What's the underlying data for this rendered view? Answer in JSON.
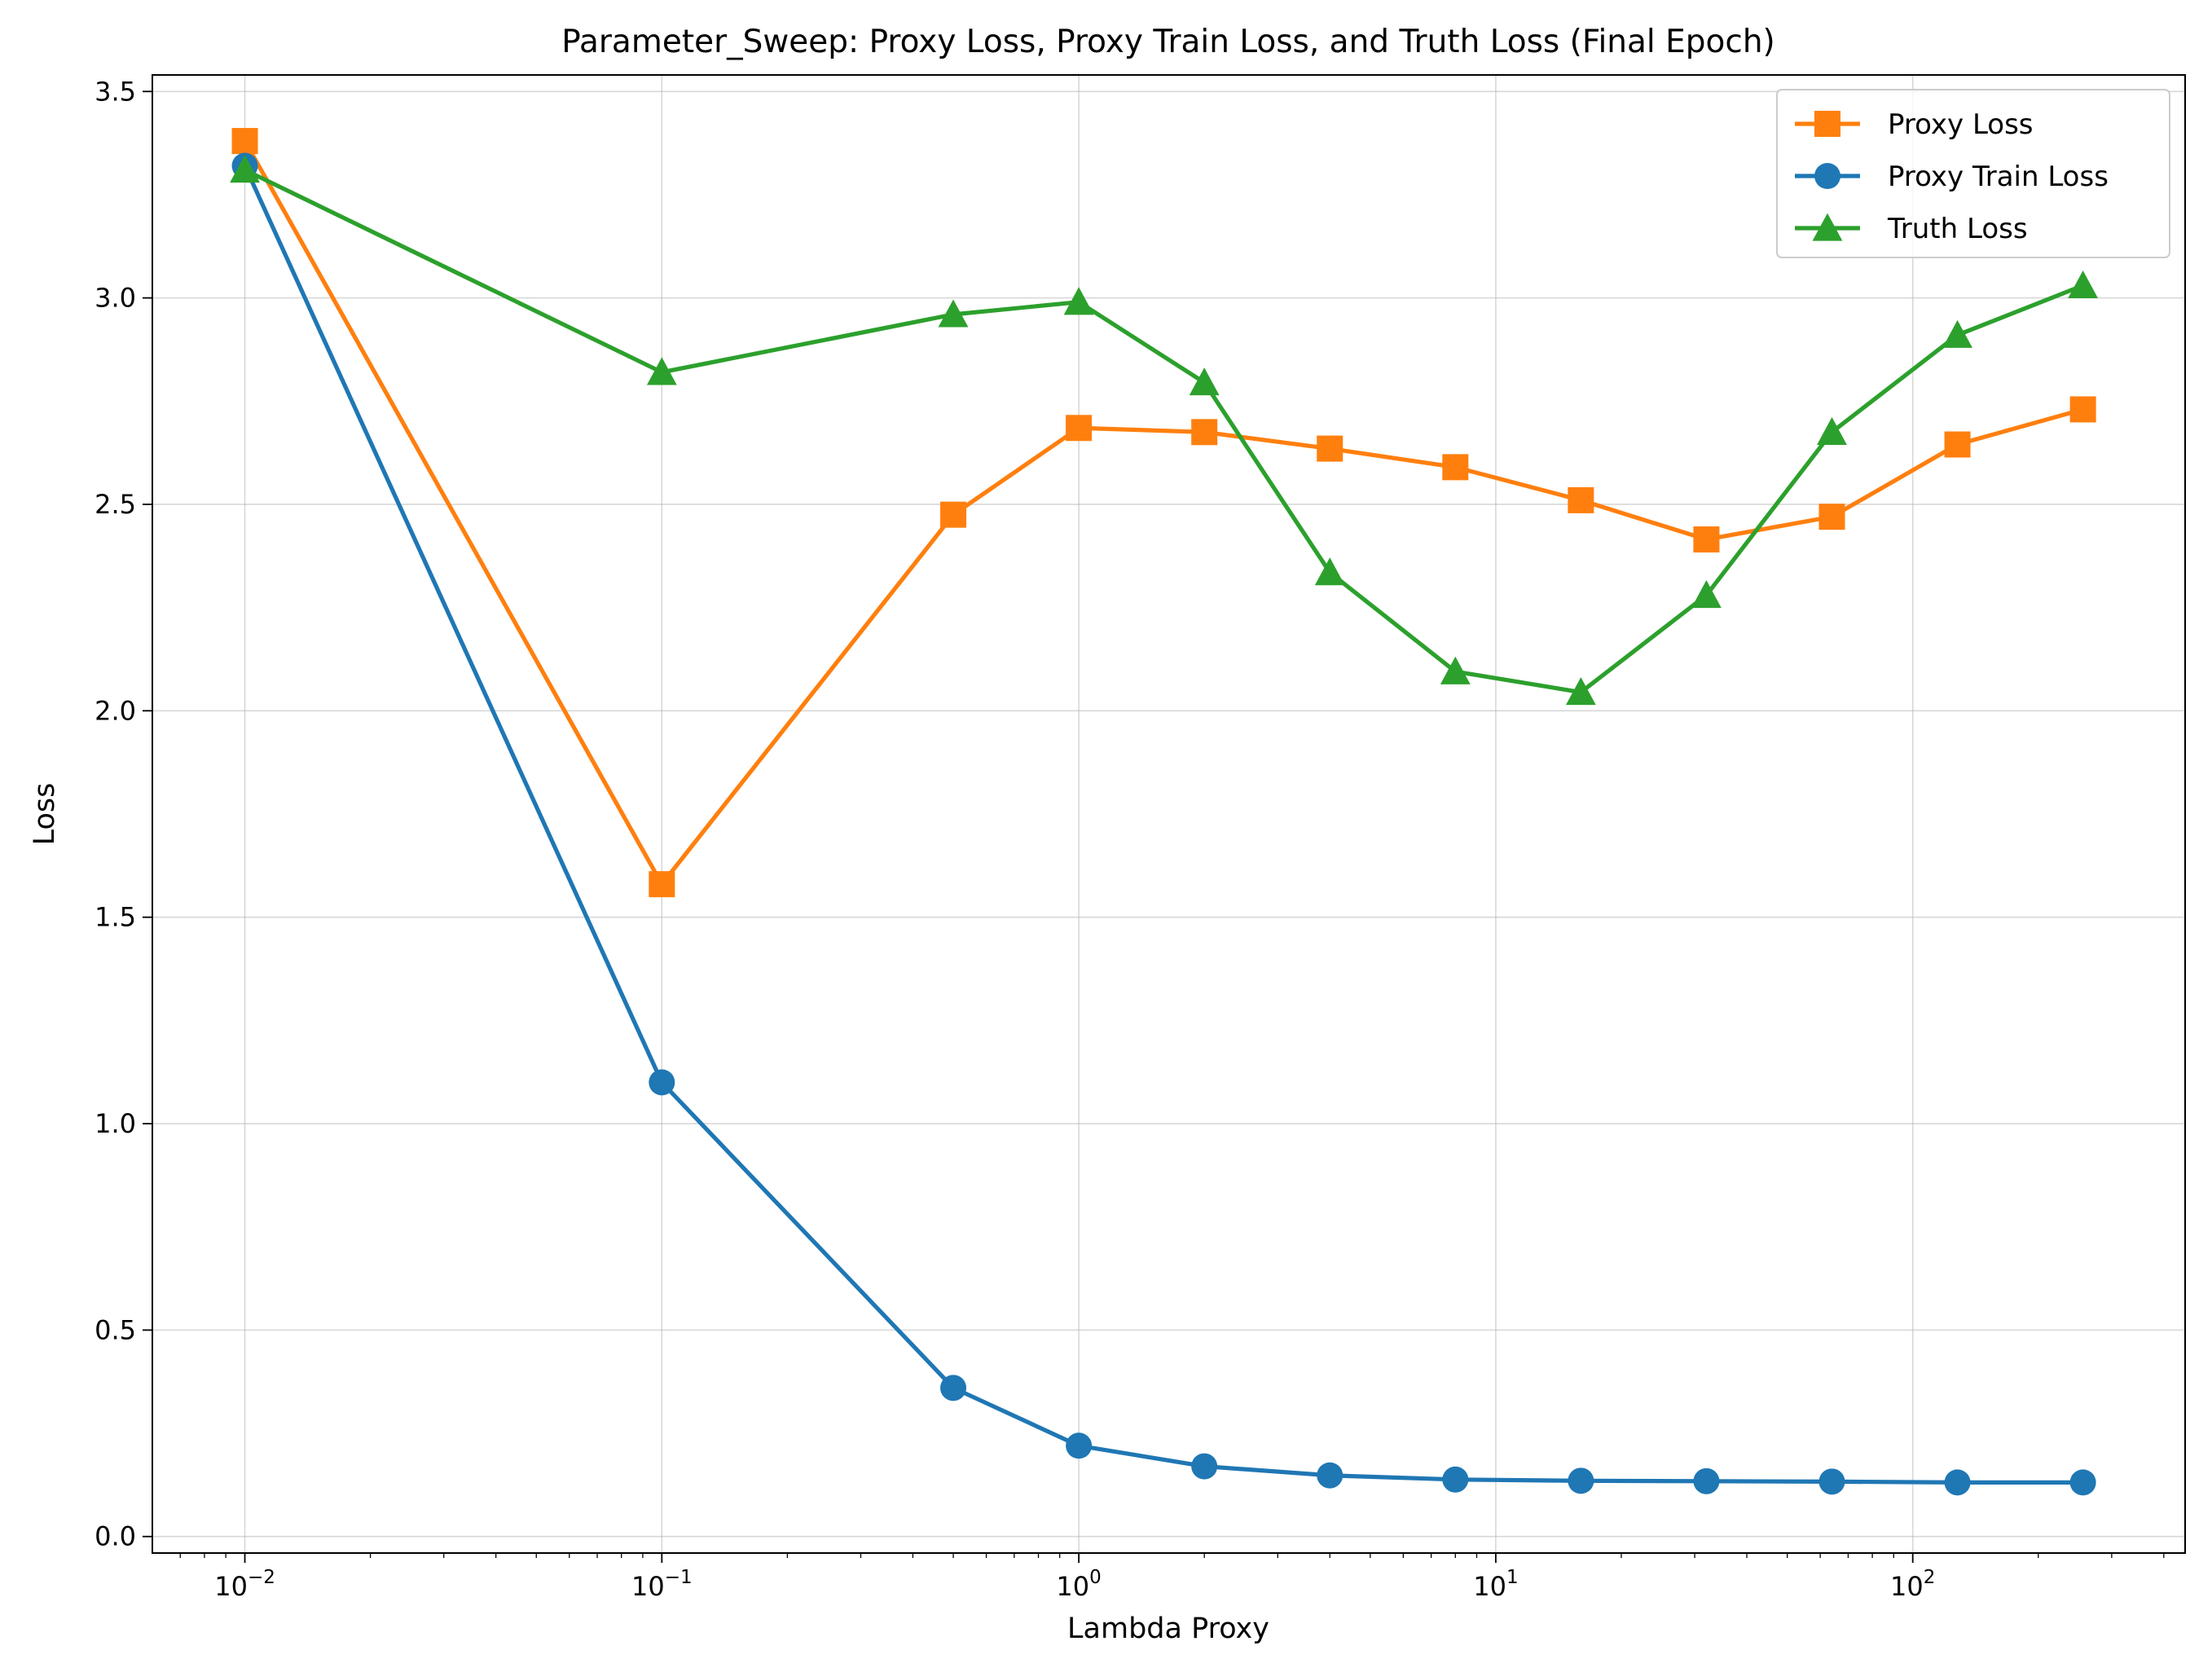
{
  "chart_data": {
    "type": "line",
    "title": "Parameter_Sweep: Proxy Loss, Proxy Train Loss, and Truth Loss (Final Epoch)",
    "xlabel": "Lambda Proxy",
    "ylabel": "Loss",
    "xscale": "log",
    "xlim": [
      0.006,
      450
    ],
    "ylim": [
      -0.04,
      3.54
    ],
    "grid": true,
    "legend_position": "top-right",
    "x": [
      0.01,
      0.1,
      0.5,
      1,
      2,
      4,
      8,
      16,
      32,
      64,
      128,
      256
    ],
    "x_tick_labels": [
      {
        "value": 0.01,
        "base": "10",
        "exp": "−2"
      },
      {
        "value": 0.1,
        "base": "10",
        "exp": "−1"
      },
      {
        "value": 1,
        "base": "10",
        "exp": "0"
      },
      {
        "value": 10,
        "base": "10",
        "exp": "1"
      },
      {
        "value": 100,
        "base": "10",
        "exp": "2"
      }
    ],
    "y_ticks": [
      "0.0",
      "0.5",
      "1.0",
      "1.5",
      "2.0",
      "2.5",
      "3.0",
      "3.5"
    ],
    "series": [
      {
        "name": "Proxy Loss",
        "color": "#ff7f0e",
        "marker": "square",
        "values": [
          3.38,
          1.58,
          2.475,
          2.685,
          2.675,
          2.635,
          2.59,
          2.51,
          2.415,
          2.47,
          2.645,
          2.73
        ]
      },
      {
        "name": "Proxy Train Loss",
        "color": "#1f77b4",
        "marker": "circle",
        "values": [
          3.32,
          1.1,
          0.36,
          0.22,
          0.17,
          0.148,
          0.138,
          0.135,
          0.134,
          0.133,
          0.131,
          0.131
        ]
      },
      {
        "name": "Truth Loss",
        "color": "#2ca02c",
        "marker": "triangle",
        "values": [
          3.31,
          2.82,
          2.96,
          2.99,
          2.795,
          2.335,
          2.095,
          2.045,
          2.28,
          2.675,
          2.91,
          3.03
        ]
      }
    ]
  }
}
